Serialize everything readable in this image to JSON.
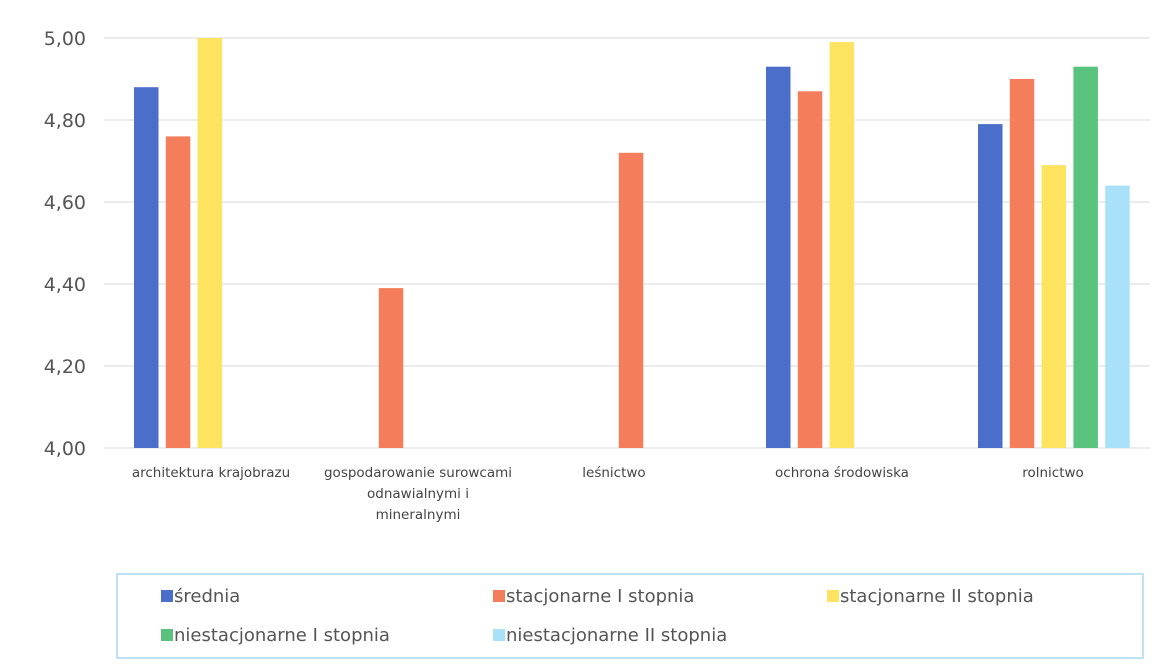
{
  "chart_data": {
    "type": "bar",
    "title": "",
    "xlabel": "",
    "ylabel": "",
    "ylim": [
      4.0,
      5.0
    ],
    "yticks": [
      "4,00",
      "4,20",
      "4,40",
      "4,60",
      "4,80",
      "5,00"
    ],
    "ytick_values": [
      4.0,
      4.2,
      4.4,
      4.6,
      4.8,
      5.0
    ],
    "grid": true,
    "legend_position": "bottom",
    "categories": [
      [
        "architektura krajobrazu"
      ],
      [
        "gospodarowanie surowcami",
        "odnawialnymi i",
        "mineralnymi"
      ],
      [
        "leśnictwo"
      ],
      [
        "ochrona środowiska"
      ],
      [
        "rolnictwo"
      ]
    ],
    "series": [
      {
        "name": "średnia",
        "color": "#4a6ec9",
        "values": [
          4.88,
          null,
          null,
          4.93,
          4.79
        ]
      },
      {
        "name": "stacjonarne I stopnia",
        "color": "#f47e5b",
        "values": [
          4.76,
          4.39,
          4.72,
          4.87,
          4.9
        ]
      },
      {
        "name": "stacjonarne II stopnia",
        "color": "#fde35f",
        "values": [
          5.0,
          null,
          null,
          4.99,
          4.69
        ]
      },
      {
        "name": "niestacjonarne I stopnia",
        "color": "#59c27d",
        "values": [
          null,
          null,
          null,
          null,
          4.93
        ]
      },
      {
        "name": "niestacjonarne II stopnia",
        "color": "#a9e1f8",
        "values": [
          null,
          null,
          null,
          null,
          4.64
        ]
      }
    ]
  },
  "colors": {
    "grid": "#d9d9d9",
    "legend_border": "#a8d8ea"
  }
}
